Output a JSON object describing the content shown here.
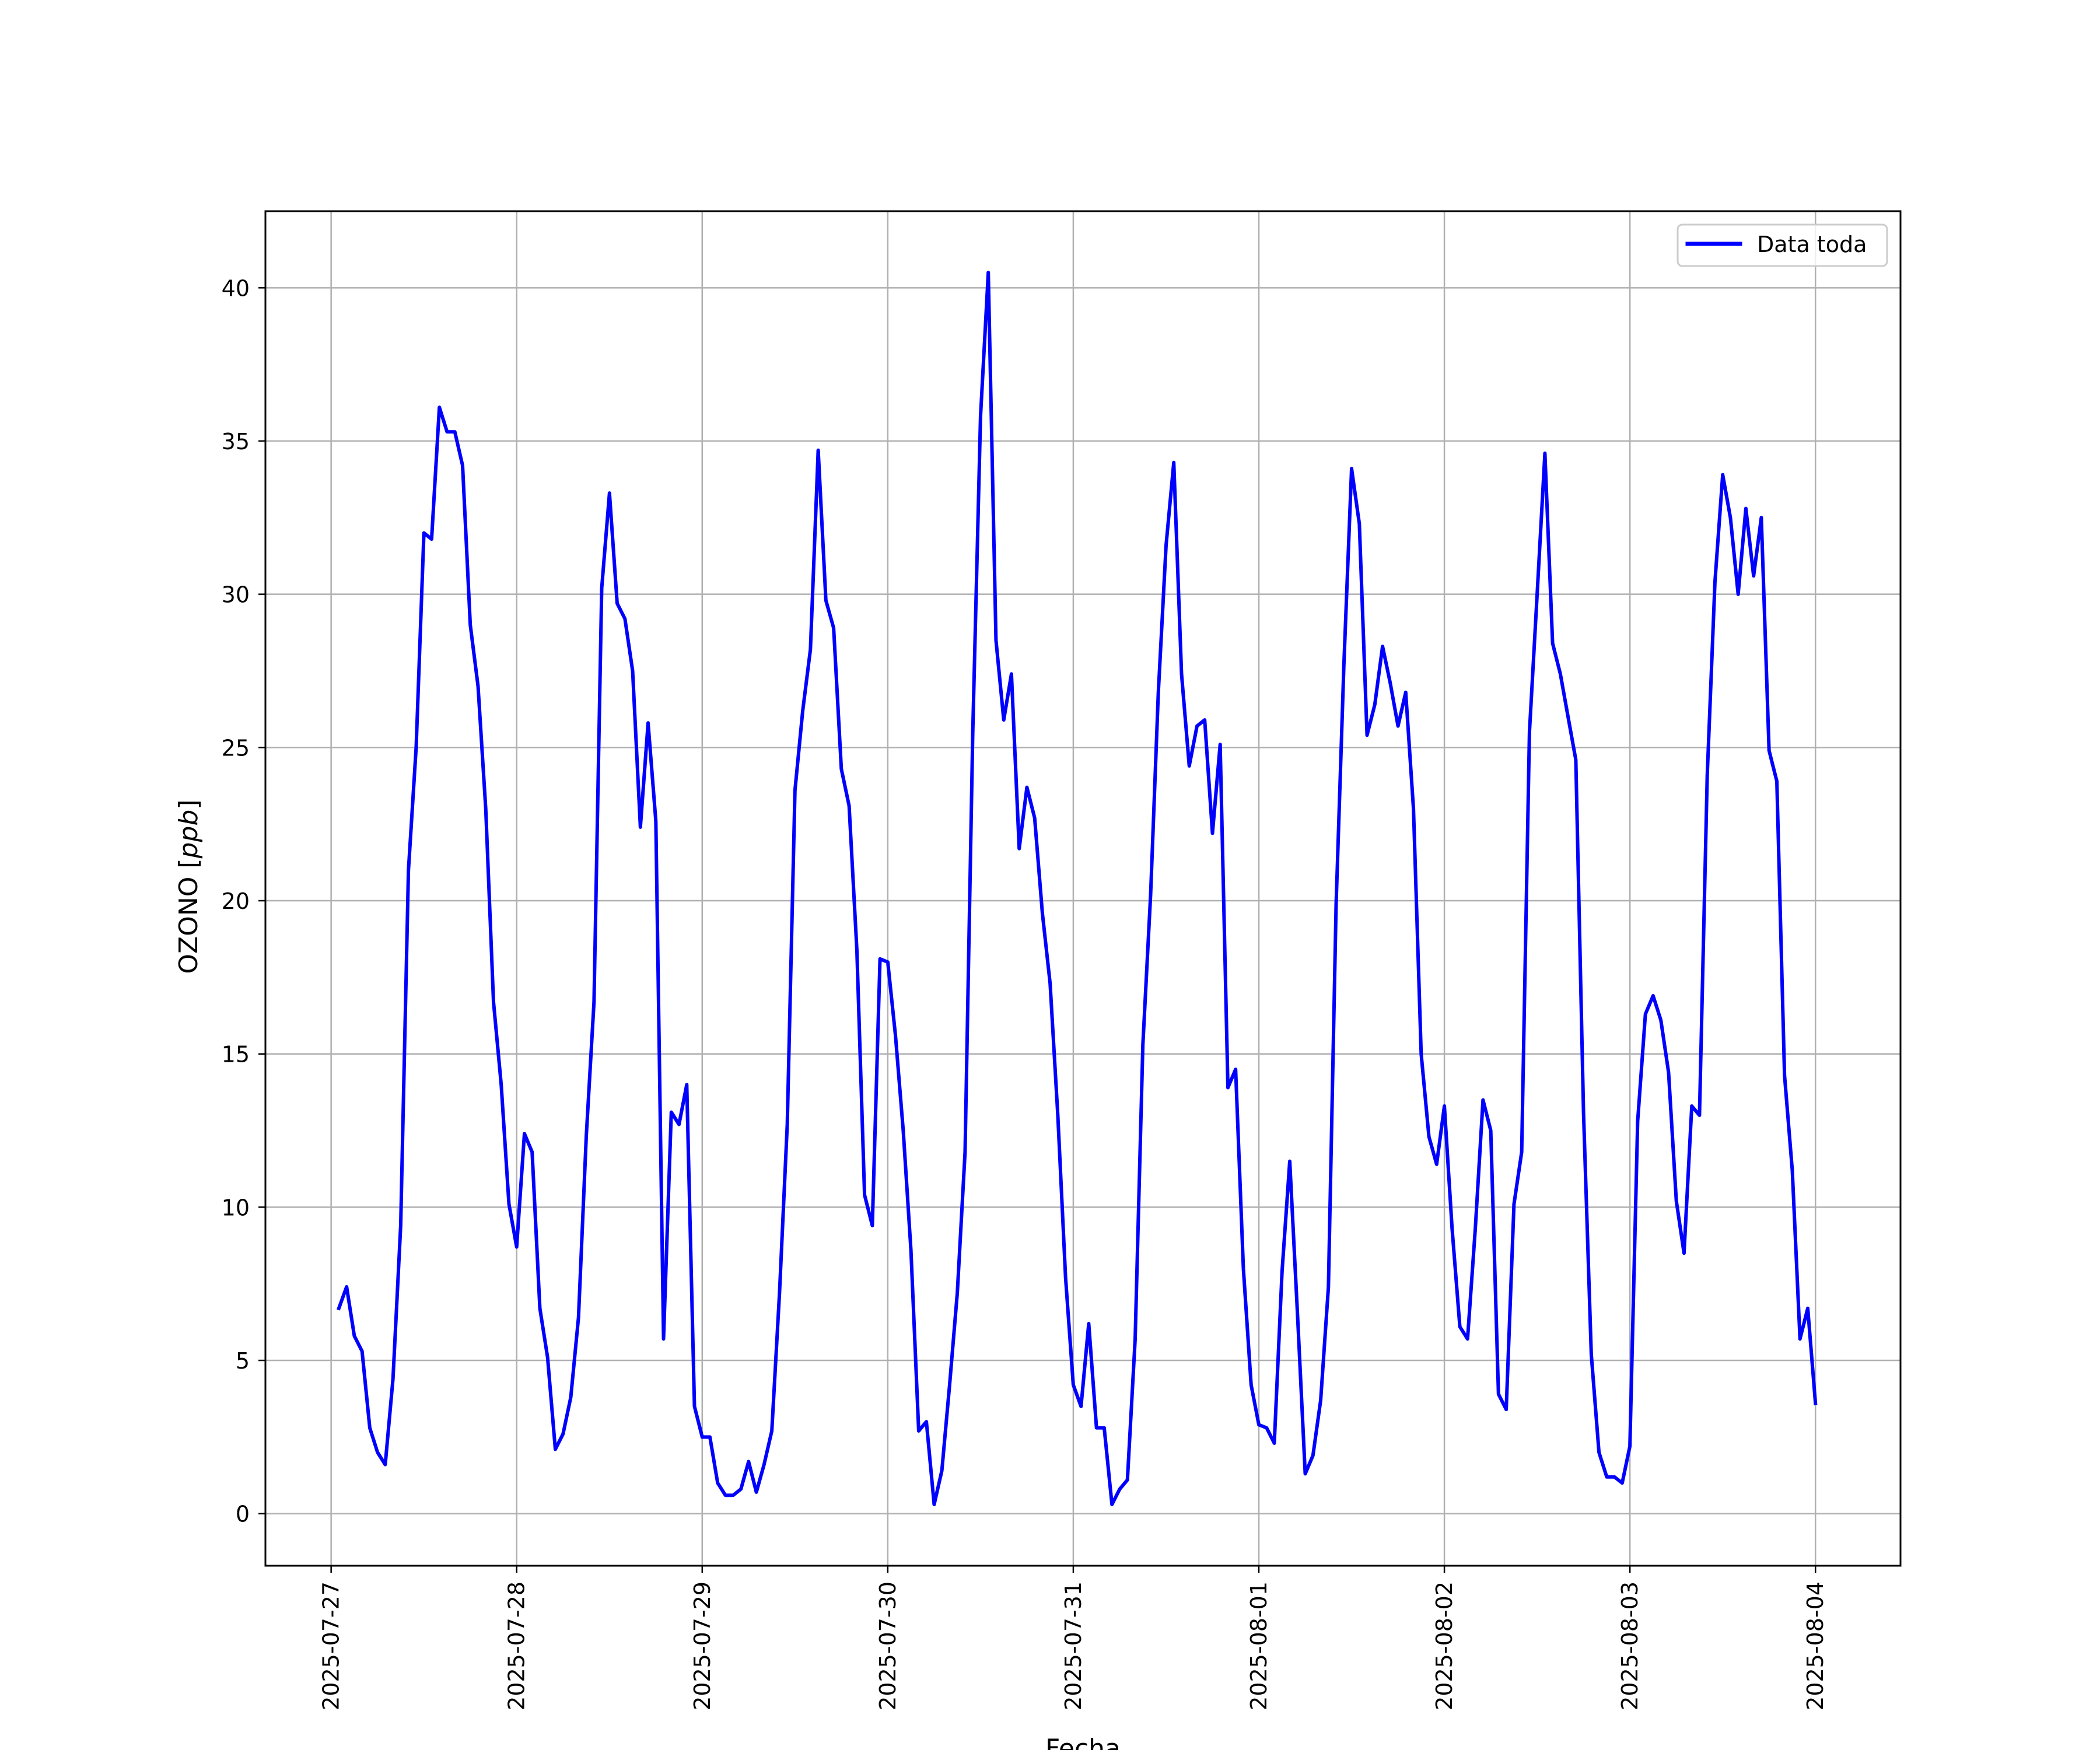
{
  "chart_data": {
    "type": "line",
    "title": "",
    "xlabel": "Fecha",
    "ylabel": "OZONO [ppb]",
    "ylabel_main": "OZONO [",
    "ylabel_unit": "ppb",
    "ylabel_close": "]",
    "x_tick_labels": [
      "2025-07-27",
      "2025-07-28",
      "2025-07-29",
      "2025-07-30",
      "2025-07-31",
      "2025-08-01",
      "2025-08-02",
      "2025-08-03",
      "2025-08-04"
    ],
    "y_tick_labels": [
      "0",
      "5",
      "10",
      "15",
      "20",
      "25",
      "30",
      "35",
      "40"
    ],
    "y_ticks": [
      0,
      5,
      10,
      15,
      20,
      25,
      30,
      35,
      40
    ],
    "xlim": [
      "2025-07-26 15:30",
      "2025-08-04 11:00"
    ],
    "ylim": [
      -1.7,
      42.5
    ],
    "grid": true,
    "legend_position": "upper right",
    "series": [
      {
        "name": "Data toda",
        "color": "#0000ff",
        "x_start": "2025-07-27 01:00",
        "x_step_hours": 1,
        "values": [
          6.7,
          7.4,
          5.8,
          5.3,
          2.8,
          2.0,
          1.6,
          4.4,
          9.4,
          21.0,
          25.0,
          32.0,
          31.8,
          36.1,
          35.3,
          35.3,
          34.2,
          29.0,
          27.0,
          23.0,
          16.7,
          14.0,
          10.1,
          8.7,
          12.4,
          11.8,
          6.7,
          5.1,
          2.1,
          2.6,
          3.8,
          6.4,
          12.3,
          16.7,
          30.2,
          33.3,
          29.7,
          29.2,
          27.5,
          22.4,
          25.8,
          22.6,
          5.7,
          13.1,
          12.7,
          14.0,
          3.5,
          2.5,
          2.5,
          1.0,
          0.6,
          0.6,
          0.8,
          1.7,
          0.7,
          1.6,
          2.7,
          7.2,
          12.7,
          23.6,
          26.2,
          28.2,
          34.7,
          29.8,
          28.9,
          24.3,
          23.1,
          18.4,
          10.4,
          9.4,
          18.1,
          18.0,
          15.6,
          12.5,
          8.6,
          2.7,
          3.0,
          0.3,
          1.4,
          4.2,
          7.2,
          11.8,
          25.5,
          35.8,
          40.5,
          28.5,
          25.9,
          27.4,
          21.7,
          23.7,
          22.7,
          19.6,
          17.3,
          13.0,
          7.7,
          4.2,
          3.5,
          6.2,
          2.8,
          2.8,
          0.3,
          0.8,
          1.1,
          5.7,
          15.3,
          20.2,
          26.8,
          31.6,
          34.3,
          27.4,
          24.4,
          25.7,
          25.9,
          22.2,
          25.1,
          13.9,
          14.5,
          8.0,
          4.2,
          2.9,
          2.8,
          2.3,
          7.9,
          11.5,
          6.5,
          1.3,
          1.9,
          3.7,
          7.4,
          19.9,
          27.7,
          34.1,
          32.3,
          25.4,
          26.4,
          28.3,
          27.1,
          25.7,
          26.8,
          23.0,
          15.0,
          12.3,
          11.4,
          13.3,
          9.3,
          6.1,
          5.7,
          9.3,
          13.5,
          12.5,
          3.9,
          3.4,
          10.1,
          11.8,
          25.5,
          30.0,
          34.6,
          28.4,
          27.4,
          26.0,
          24.6,
          13.1,
          5.2,
          2.0,
          1.2,
          1.2,
          1.0,
          2.2,
          12.8,
          16.3,
          16.9,
          16.1,
          14.4,
          10.2,
          8.5,
          13.3,
          13.0,
          24.1,
          30.4,
          33.9,
          32.5,
          30.0,
          32.8,
          30.6,
          32.5,
          24.9,
          23.9,
          14.3,
          11.2,
          5.7,
          6.7,
          3.6
        ]
      }
    ]
  }
}
